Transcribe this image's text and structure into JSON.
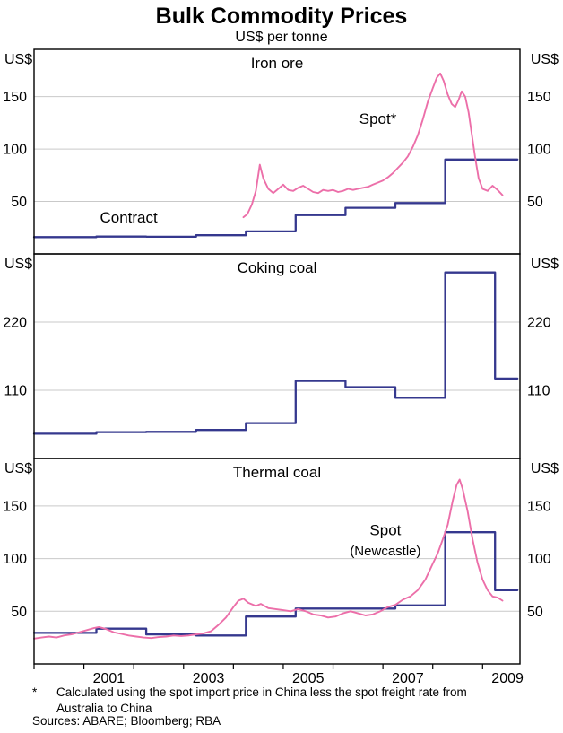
{
  "title": "Bulk Commodity Prices",
  "subtitle": "US$ per tonne",
  "colors": {
    "contract": "#35388e",
    "spot": "#ec6fa9",
    "grid": "#c9c9c9",
    "frame": "#000000"
  },
  "axis": {
    "xlim": [
      2000,
      2009.75
    ],
    "x_labels": [
      "2001",
      "2003",
      "2005",
      "2007",
      "2009"
    ],
    "x_minor_ticks": [
      2000,
      2001,
      2002,
      2003,
      2004,
      2005,
      2006,
      2007,
      2008,
      2009
    ]
  },
  "chart_data": [
    {
      "type": "line",
      "title": "Iron ore",
      "unit_left": "US$",
      "unit_right": "US$",
      "ylim": [
        0,
        195
      ],
      "yticks": [
        50,
        100,
        150
      ],
      "series": [
        {
          "name": "Contract",
          "style": "step",
          "color_key": "contract",
          "x_end": 2009.7,
          "points": [
            [
              2000,
              16
            ],
            [
              2001.25,
              16.5
            ],
            [
              2002.25,
              16.3
            ],
            [
              2003.25,
              17.8
            ],
            [
              2004.25,
              21.5
            ],
            [
              2005.25,
              37
            ],
            [
              2006.25,
              44
            ],
            [
              2007.25,
              48.5
            ],
            [
              2008.25,
              90
            ]
          ]
        },
        {
          "name": "Spot*",
          "style": "line",
          "color_key": "spot",
          "points": [
            [
              2004.2,
              35
            ],
            [
              2004.28,
              38
            ],
            [
              2004.37,
              47
            ],
            [
              2004.45,
              60
            ],
            [
              2004.53,
              85
            ],
            [
              2004.6,
              72
            ],
            [
              2004.7,
              62
            ],
            [
              2004.8,
              58
            ],
            [
              2004.9,
              62
            ],
            [
              2005.0,
              66
            ],
            [
              2005.1,
              61
            ],
            [
              2005.2,
              60
            ],
            [
              2005.3,
              63
            ],
            [
              2005.4,
              65
            ],
            [
              2005.5,
              62
            ],
            [
              2005.6,
              59
            ],
            [
              2005.7,
              58
            ],
            [
              2005.8,
              61
            ],
            [
              2005.9,
              60
            ],
            [
              2006.0,
              61
            ],
            [
              2006.1,
              59
            ],
            [
              2006.2,
              60
            ],
            [
              2006.3,
              62
            ],
            [
              2006.4,
              61
            ],
            [
              2006.5,
              62
            ],
            [
              2006.6,
              63
            ],
            [
              2006.7,
              64
            ],
            [
              2006.8,
              66
            ],
            [
              2006.9,
              68
            ],
            [
              2007.0,
              70
            ],
            [
              2007.1,
              73
            ],
            [
              2007.2,
              77
            ],
            [
              2007.3,
              82
            ],
            [
              2007.4,
              87
            ],
            [
              2007.5,
              93
            ],
            [
              2007.6,
              102
            ],
            [
              2007.7,
              113
            ],
            [
              2007.8,
              128
            ],
            [
              2007.9,
              145
            ],
            [
              2008.0,
              158
            ],
            [
              2008.08,
              168
            ],
            [
              2008.15,
              172
            ],
            [
              2008.22,
              165
            ],
            [
              2008.3,
              152
            ],
            [
              2008.38,
              143
            ],
            [
              2008.45,
              140
            ],
            [
              2008.52,
              147
            ],
            [
              2008.58,
              155
            ],
            [
              2008.65,
              150
            ],
            [
              2008.72,
              135
            ],
            [
              2008.78,
              115
            ],
            [
              2008.85,
              92
            ],
            [
              2008.92,
              72
            ],
            [
              2009.0,
              62
            ],
            [
              2009.1,
              60
            ],
            [
              2009.2,
              65
            ],
            [
              2009.3,
              61
            ],
            [
              2009.4,
              56
            ]
          ]
        }
      ],
      "annotations": [
        {
          "text": "Spot*",
          "x": 2006.9,
          "y": 124,
          "color_key": "spot",
          "size": 17
        },
        {
          "text": "Contract",
          "x": 2001.9,
          "y": 30,
          "color_key": "contract",
          "size": 17
        }
      ]
    },
    {
      "type": "line",
      "title": "Coking coal",
      "unit_left": "US$",
      "unit_right": "US$",
      "ylim": [
        0,
        330
      ],
      "yticks": [
        110,
        220
      ],
      "series": [
        {
          "name": "Contract",
          "style": "step",
          "color_key": "contract",
          "x_end": 2009.7,
          "points": [
            [
              2000,
              40
            ],
            [
              2001.25,
              42.5
            ],
            [
              2002.25,
              43
            ],
            [
              2003.25,
              46
            ],
            [
              2004.25,
              57
            ],
            [
              2005.25,
              125
            ],
            [
              2006.25,
              115
            ],
            [
              2007.25,
              98
            ],
            [
              2008.25,
              300
            ],
            [
              2009.25,
              129
            ]
          ]
        }
      ],
      "annotations": []
    },
    {
      "type": "line",
      "title": "Thermal coal",
      "unit_left": "US$",
      "unit_right": "US$",
      "ylim": [
        0,
        195
      ],
      "yticks": [
        50,
        100,
        150
      ],
      "series": [
        {
          "name": "Contract",
          "style": "step",
          "color_key": "contract",
          "x_end": 2009.7,
          "points": [
            [
              2000,
              29.5
            ],
            [
              2001.25,
              33.5
            ],
            [
              2002.25,
              28
            ],
            [
              2003.25,
              27
            ],
            [
              2004.25,
              45
            ],
            [
              2005.25,
              52.5
            ],
            [
              2007.25,
              55.5
            ],
            [
              2008.25,
              125
            ],
            [
              2009.25,
              70
            ]
          ]
        },
        {
          "name": "Spot (Newcastle)",
          "style": "line",
          "color_key": "spot",
          "points": [
            [
              2000.0,
              24
            ],
            [
              2000.15,
              25
            ],
            [
              2000.3,
              26
            ],
            [
              2000.45,
              25
            ],
            [
              2000.6,
              27
            ],
            [
              2000.75,
              28
            ],
            [
              2000.9,
              30
            ],
            [
              2001.05,
              32
            ],
            [
              2001.2,
              34
            ],
            [
              2001.3,
              35
            ],
            [
              2001.45,
              33
            ],
            [
              2001.6,
              30
            ],
            [
              2001.75,
              28.5
            ],
            [
              2001.9,
              27
            ],
            [
              2002.05,
              26
            ],
            [
              2002.2,
              25
            ],
            [
              2002.35,
              24.5
            ],
            [
              2002.5,
              25.5
            ],
            [
              2002.65,
              26
            ],
            [
              2002.8,
              27
            ],
            [
              2002.95,
              26.5
            ],
            [
              2003.1,
              27
            ],
            [
              2003.25,
              28
            ],
            [
              2003.4,
              29
            ],
            [
              2003.55,
              31
            ],
            [
              2003.7,
              37
            ],
            [
              2003.85,
              44
            ],
            [
              2004.0,
              54
            ],
            [
              2004.1,
              60
            ],
            [
              2004.2,
              62
            ],
            [
              2004.3,
              58
            ],
            [
              2004.45,
              55
            ],
            [
              2004.55,
              57
            ],
            [
              2004.7,
              53
            ],
            [
              2004.85,
              52
            ],
            [
              2005.0,
              51
            ],
            [
              2005.15,
              50
            ],
            [
              2005.3,
              52
            ],
            [
              2005.45,
              50
            ],
            [
              2005.6,
              47
            ],
            [
              2005.75,
              46
            ],
            [
              2005.9,
              44
            ],
            [
              2006.05,
              45
            ],
            [
              2006.2,
              48
            ],
            [
              2006.35,
              50
            ],
            [
              2006.5,
              48
            ],
            [
              2006.65,
              46
            ],
            [
              2006.8,
              47
            ],
            [
              2006.95,
              50
            ],
            [
              2007.1,
              54
            ],
            [
              2007.25,
              56
            ],
            [
              2007.4,
              61
            ],
            [
              2007.55,
              64
            ],
            [
              2007.7,
              70
            ],
            [
              2007.85,
              80
            ],
            [
              2008.0,
              95
            ],
            [
              2008.1,
              105
            ],
            [
              2008.2,
              118
            ],
            [
              2008.3,
              132
            ],
            [
              2008.4,
              155
            ],
            [
              2008.48,
              170
            ],
            [
              2008.54,
              175
            ],
            [
              2008.6,
              166
            ],
            [
              2008.7,
              145
            ],
            [
              2008.8,
              118
            ],
            [
              2008.9,
              96
            ],
            [
              2009.0,
              80
            ],
            [
              2009.1,
              70
            ],
            [
              2009.2,
              64
            ],
            [
              2009.3,
              63
            ],
            [
              2009.4,
              60
            ]
          ]
        }
      ],
      "annotations": [
        {
          "text": "Spot",
          "x": 2007.05,
          "y": 122,
          "color_key": "spot",
          "size": 17
        },
        {
          "text": "(Newcastle)",
          "x": 2007.05,
          "y": 103,
          "color_key": "spot",
          "size": 15
        }
      ]
    }
  ],
  "footnote": {
    "marker": "*",
    "text": "Calculated using the spot import price in China less the spot freight rate from Australia to China",
    "sources": "Sources: ABARE; Bloomberg; RBA"
  }
}
